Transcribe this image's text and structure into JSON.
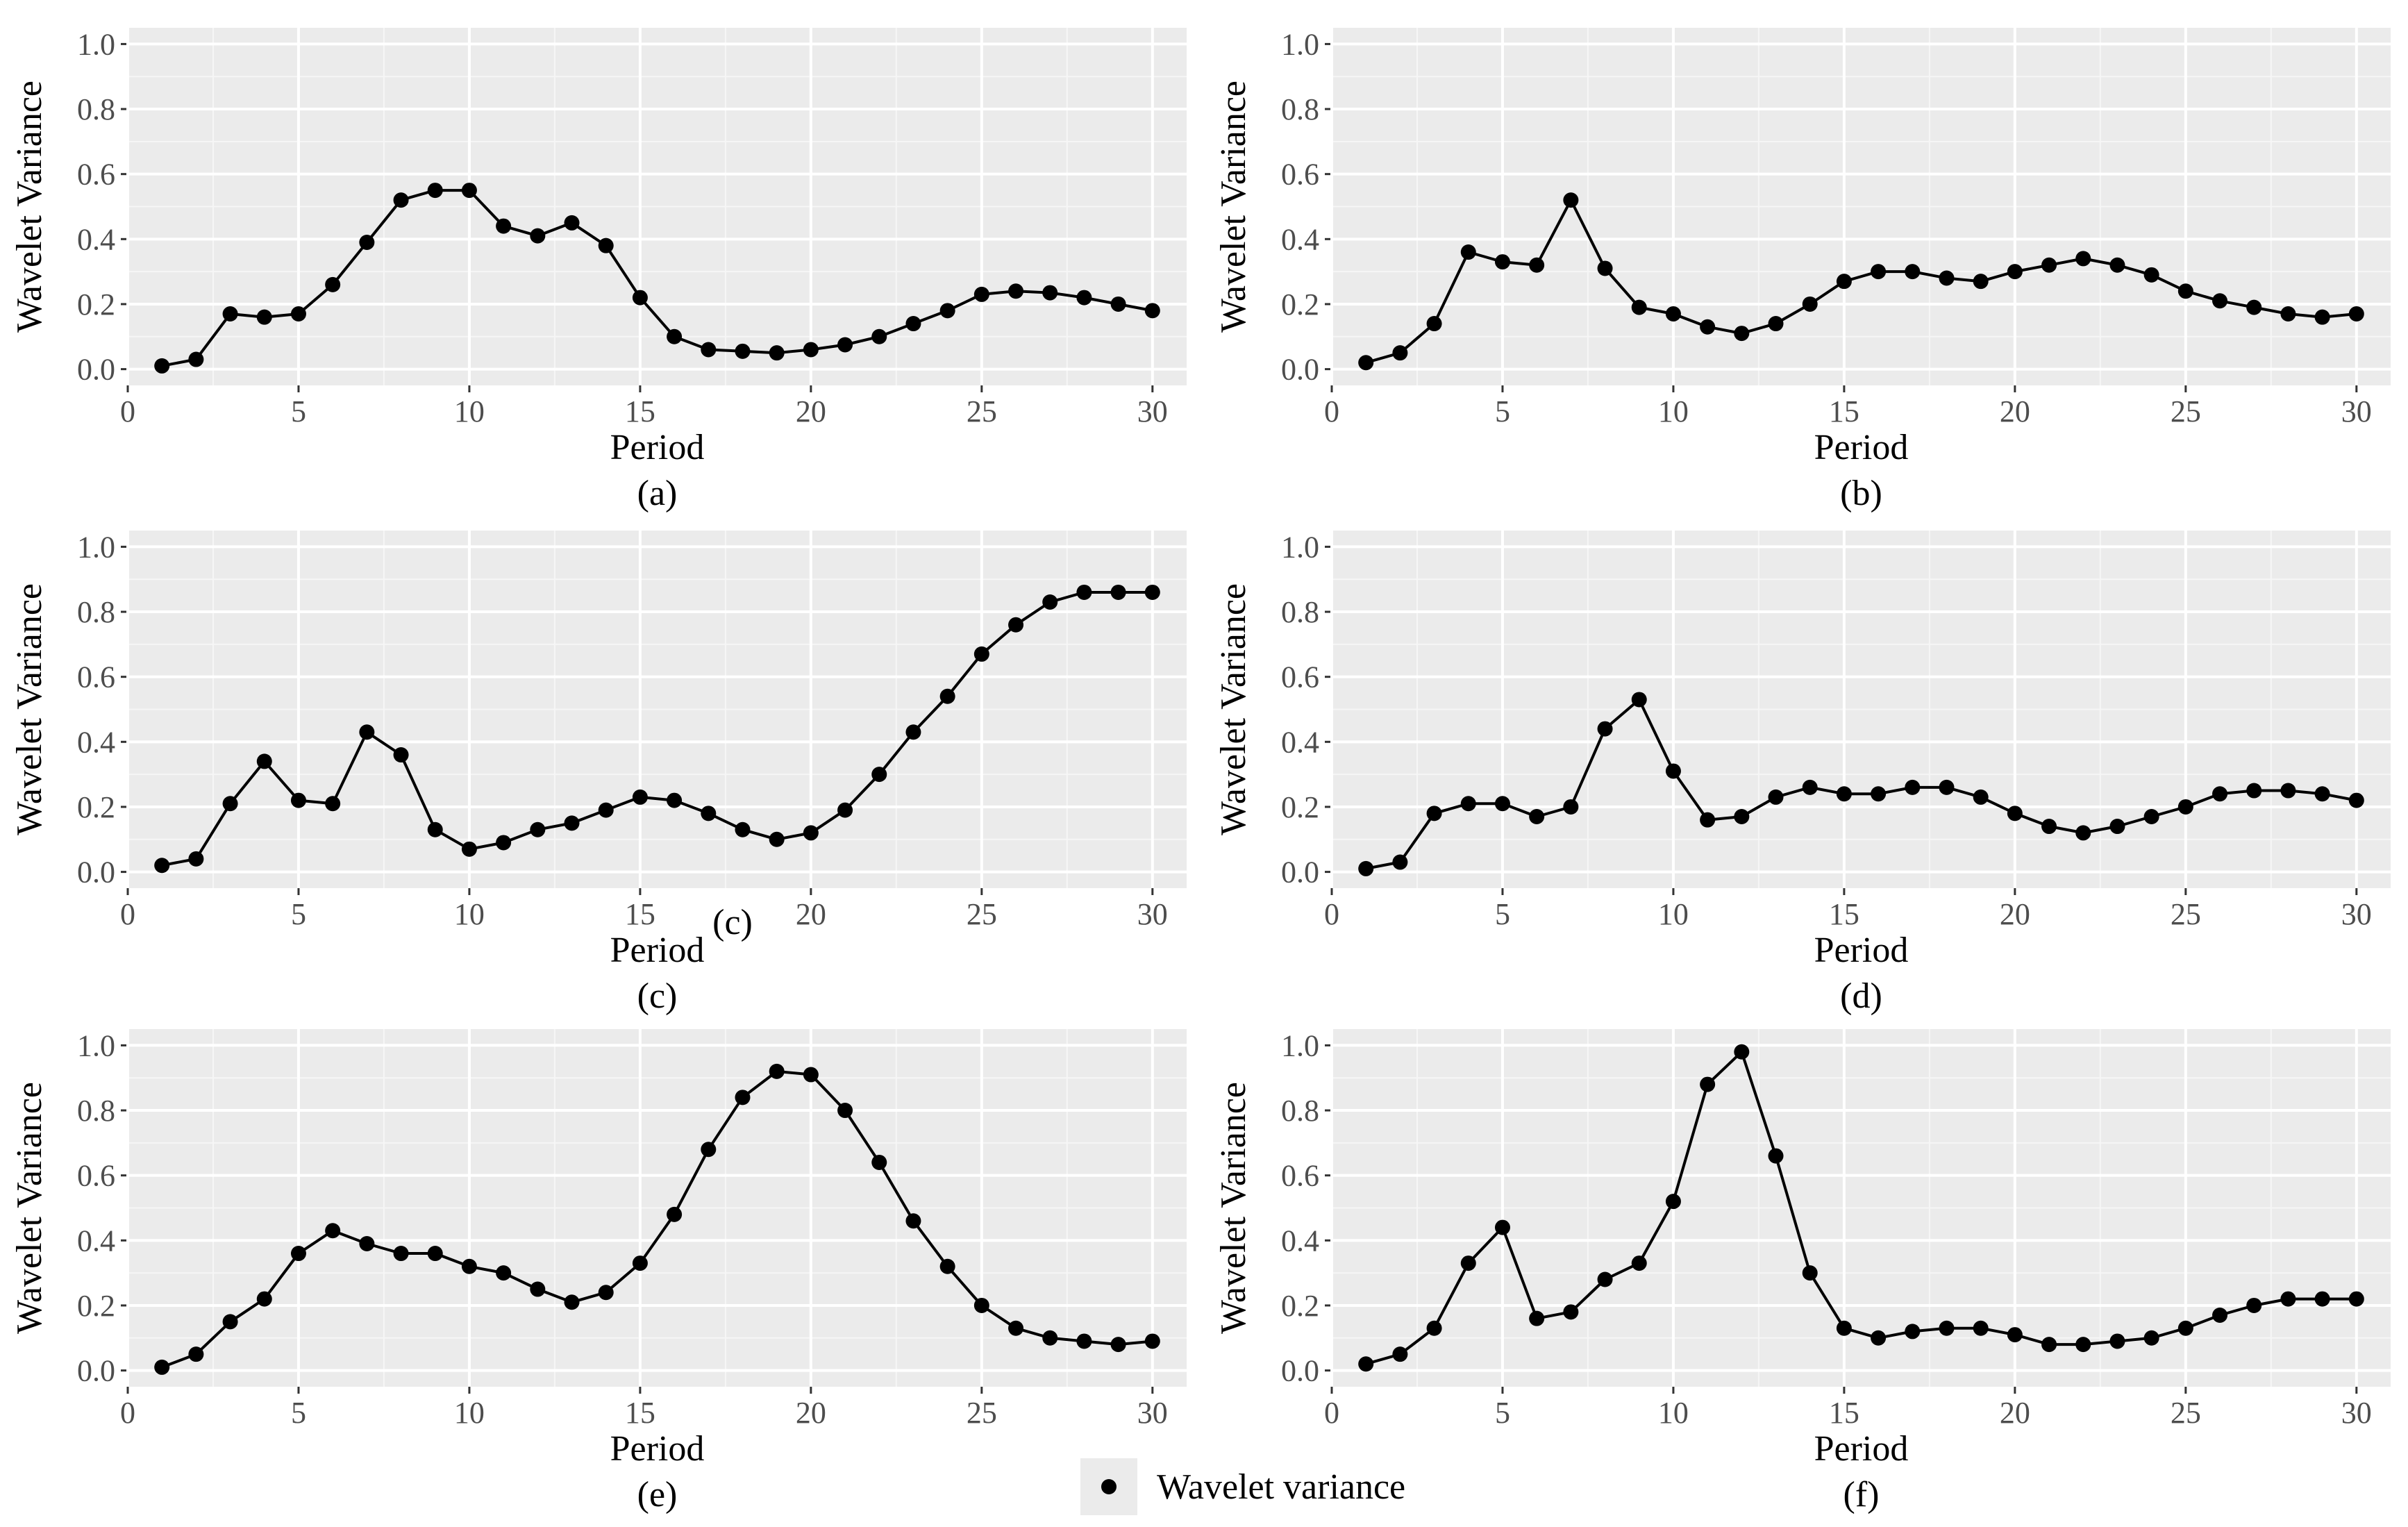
{
  "figure": {
    "legend_label": "Wavelet variance",
    "stray_label_c": "(c)"
  },
  "chart_data": [
    {
      "type": "line",
      "caption": "(a)",
      "xlabel": "Period",
      "ylabel": "Wavelet Variance",
      "xlim": [
        0,
        31
      ],
      "ylim": [
        -0.05,
        1.05
      ],
      "xticks": [
        0,
        5,
        10,
        15,
        20,
        25,
        30
      ],
      "yticks": [
        0.0,
        0.2,
        0.4,
        0.6,
        0.8,
        1.0
      ],
      "x": [
        1,
        2,
        3,
        4,
        5,
        6,
        7,
        8,
        9,
        10,
        11,
        12,
        13,
        14,
        15,
        16,
        17,
        18,
        19,
        20,
        21,
        22,
        23,
        24,
        25,
        26,
        27,
        28,
        29,
        30
      ],
      "series": [
        {
          "name": "Wavelet variance",
          "values": [
            0.01,
            0.03,
            0.17,
            0.16,
            0.17,
            0.26,
            0.39,
            0.52,
            0.55,
            0.55,
            0.44,
            0.41,
            0.45,
            0.38,
            0.22,
            0.1,
            0.06,
            0.055,
            0.05,
            0.06,
            0.075,
            0.1,
            0.14,
            0.18,
            0.23,
            0.24,
            0.235,
            0.22,
            0.2,
            0.18
          ]
        }
      ]
    },
    {
      "type": "line",
      "caption": "(b)",
      "xlabel": "Period",
      "ylabel": "Wavelet Variance",
      "xlim": [
        0,
        31
      ],
      "ylim": [
        -0.05,
        1.05
      ],
      "xticks": [
        0,
        5,
        10,
        15,
        20,
        25,
        30
      ],
      "yticks": [
        0.0,
        0.2,
        0.4,
        0.6,
        0.8,
        1.0
      ],
      "x": [
        1,
        2,
        3,
        4,
        5,
        6,
        7,
        8,
        9,
        10,
        11,
        12,
        13,
        14,
        15,
        16,
        17,
        18,
        19,
        20,
        21,
        22,
        23,
        24,
        25,
        26,
        27,
        28,
        29,
        30
      ],
      "series": [
        {
          "name": "Wavelet variance",
          "values": [
            0.02,
            0.05,
            0.14,
            0.36,
            0.33,
            0.32,
            0.52,
            0.31,
            0.19,
            0.17,
            0.13,
            0.11,
            0.14,
            0.2,
            0.27,
            0.3,
            0.3,
            0.28,
            0.27,
            0.3,
            0.32,
            0.34,
            0.32,
            0.29,
            0.24,
            0.21,
            0.19,
            0.17,
            0.16,
            0.17
          ]
        }
      ]
    },
    {
      "type": "line",
      "caption": "(c)",
      "xlabel": "Period",
      "ylabel": "Wavelet Variance",
      "xlim": [
        0,
        31
      ],
      "ylim": [
        -0.05,
        1.05
      ],
      "xticks": [
        0,
        5,
        10,
        15,
        20,
        25,
        30
      ],
      "yticks": [
        0.0,
        0.2,
        0.4,
        0.6,
        0.8,
        1.0
      ],
      "x": [
        1,
        2,
        3,
        4,
        5,
        6,
        7,
        8,
        9,
        10,
        11,
        12,
        13,
        14,
        15,
        16,
        17,
        18,
        19,
        20,
        21,
        22,
        23,
        24,
        25,
        26,
        27,
        28,
        29,
        30
      ],
      "series": [
        {
          "name": "Wavelet variance",
          "values": [
            0.02,
            0.04,
            0.21,
            0.34,
            0.22,
            0.21,
            0.43,
            0.36,
            0.13,
            0.07,
            0.09,
            0.13,
            0.15,
            0.19,
            0.23,
            0.22,
            0.18,
            0.13,
            0.1,
            0.12,
            0.19,
            0.3,
            0.43,
            0.54,
            0.67,
            0.76,
            0.83,
            0.86,
            0.86,
            0.86
          ]
        }
      ]
    },
    {
      "type": "line",
      "caption": "(d)",
      "xlabel": "Period",
      "ylabel": "Wavelet Variance",
      "xlim": [
        0,
        31
      ],
      "ylim": [
        -0.05,
        1.05
      ],
      "xticks": [
        0,
        5,
        10,
        15,
        20,
        25,
        30
      ],
      "yticks": [
        0.0,
        0.2,
        0.4,
        0.6,
        0.8,
        1.0
      ],
      "x": [
        1,
        2,
        3,
        4,
        5,
        6,
        7,
        8,
        9,
        10,
        11,
        12,
        13,
        14,
        15,
        16,
        17,
        18,
        19,
        20,
        21,
        22,
        23,
        24,
        25,
        26,
        27,
        28,
        29,
        30
      ],
      "series": [
        {
          "name": "Wavelet variance",
          "values": [
            0.01,
            0.03,
            0.18,
            0.21,
            0.21,
            0.17,
            0.2,
            0.44,
            0.53,
            0.31,
            0.16,
            0.17,
            0.23,
            0.26,
            0.24,
            0.24,
            0.26,
            0.26,
            0.23,
            0.18,
            0.14,
            0.12,
            0.14,
            0.17,
            0.2,
            0.24,
            0.25,
            0.25,
            0.24,
            0.22
          ]
        }
      ]
    },
    {
      "type": "line",
      "caption": "(e)",
      "xlabel": "Period",
      "ylabel": "Wavelet Variance",
      "xlim": [
        0,
        31
      ],
      "ylim": [
        -0.05,
        1.05
      ],
      "xticks": [
        0,
        5,
        10,
        15,
        20,
        25,
        30
      ],
      "yticks": [
        0.0,
        0.2,
        0.4,
        0.6,
        0.8,
        1.0
      ],
      "x": [
        1,
        2,
        3,
        4,
        5,
        6,
        7,
        8,
        9,
        10,
        11,
        12,
        13,
        14,
        15,
        16,
        17,
        18,
        19,
        20,
        21,
        22,
        23,
        24,
        25,
        26,
        27,
        28,
        29,
        30
      ],
      "series": [
        {
          "name": "Wavelet variance",
          "values": [
            0.01,
            0.05,
            0.15,
            0.22,
            0.36,
            0.43,
            0.39,
            0.36,
            0.36,
            0.32,
            0.3,
            0.25,
            0.21,
            0.24,
            0.33,
            0.48,
            0.68,
            0.84,
            0.92,
            0.91,
            0.8,
            0.64,
            0.46,
            0.32,
            0.2,
            0.13,
            0.1,
            0.09,
            0.08,
            0.09
          ]
        }
      ]
    },
    {
      "type": "line",
      "caption": "(f)",
      "xlabel": "Period",
      "ylabel": "Wavelet Variance",
      "xlim": [
        0,
        31
      ],
      "ylim": [
        -0.05,
        1.05
      ],
      "xticks": [
        0,
        5,
        10,
        15,
        20,
        25,
        30
      ],
      "yticks": [
        0.0,
        0.2,
        0.4,
        0.6,
        0.8,
        1.0
      ],
      "x": [
        1,
        2,
        3,
        4,
        5,
        6,
        7,
        8,
        9,
        10,
        11,
        12,
        13,
        14,
        15,
        16,
        17,
        18,
        19,
        20,
        21,
        22,
        23,
        24,
        25,
        26,
        27,
        28,
        29,
        30
      ],
      "series": [
        {
          "name": "Wavelet variance",
          "values": [
            0.02,
            0.05,
            0.13,
            0.33,
            0.44,
            0.16,
            0.18,
            0.28,
            0.33,
            0.52,
            0.88,
            0.98,
            0.66,
            0.3,
            0.13,
            0.1,
            0.12,
            0.13,
            0.13,
            0.11,
            0.08,
            0.08,
            0.09,
            0.1,
            0.13,
            0.17,
            0.2,
            0.22,
            0.22,
            0.22
          ]
        }
      ]
    }
  ]
}
